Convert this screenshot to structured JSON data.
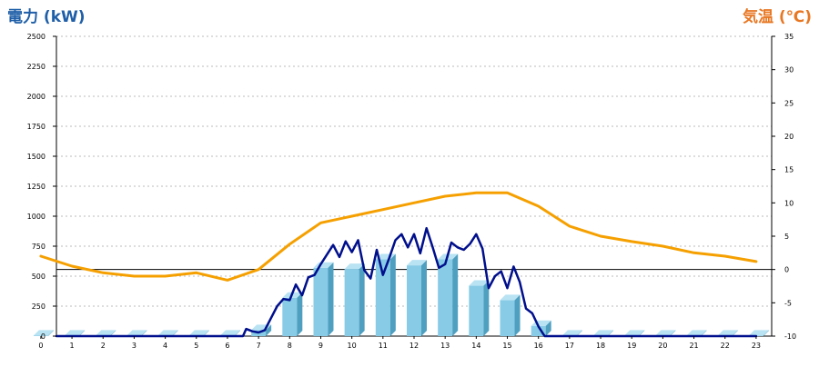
{
  "chart_data": {
    "type": "bar+line",
    "left_axis_label": "電力 (kW)",
    "right_axis_label": "気温 (℃)",
    "x_ticks": [
      "0",
      "1",
      "2",
      "3",
      "4",
      "5",
      "6",
      "7",
      "8",
      "9",
      "10",
      "11",
      "12",
      "13",
      "14",
      "15",
      "16",
      "17",
      "18",
      "19",
      "20",
      "21",
      "22",
      "23"
    ],
    "left_ticks": [
      "0",
      "250",
      "500",
      "750",
      "1000",
      "1250",
      "1500",
      "1750",
      "2000",
      "2250",
      "2500"
    ],
    "right_ticks": [
      "-10",
      "-5",
      "0",
      "5",
      "10",
      "15",
      "20",
      "25",
      "30",
      "35"
    ],
    "ylim_left": [
      0,
      2500
    ],
    "ylim_right": [
      -10,
      35
    ],
    "grid": "horizontal dashed",
    "colors": {
      "left_label": "#1f5fa8",
      "right_label": "#e87722",
      "bar_front": "#87cbe6",
      "bar_side": "#4f9fc0",
      "bar_top": "#b9e3f3",
      "power_line": "#000f8c",
      "temp_line": "#f5a000",
      "zero_line": "#000000",
      "grid": "#bbbbbb"
    },
    "bars": {
      "x": [
        0,
        1,
        2,
        3,
        4,
        5,
        6,
        7,
        8,
        9,
        10,
        11,
        12,
        13,
        14,
        15,
        16,
        17,
        18,
        19,
        20,
        21,
        22,
        23
      ],
      "values": [
        5,
        5,
        5,
        5,
        5,
        5,
        5,
        50,
        320,
        570,
        560,
        640,
        590,
        640,
        420,
        300,
        85,
        5,
        5,
        5,
        5,
        5,
        5,
        5
      ]
    },
    "power_line": {
      "x": [
        0,
        6.5,
        6.6,
        6.8,
        7.0,
        7.2,
        7.4,
        7.6,
        7.8,
        8.0,
        8.2,
        8.4,
        8.6,
        8.8,
        9.0,
        9.2,
        9.4,
        9.6,
        9.8,
        10.0,
        10.2,
        10.4,
        10.6,
        10.8,
        11.0,
        11.2,
        11.4,
        11.6,
        11.8,
        12.0,
        12.2,
        12.4,
        12.6,
        12.8,
        13.0,
        13.2,
        13.4,
        13.6,
        13.8,
        14.0,
        14.2,
        14.4,
        14.6,
        14.8,
        15.0,
        15.2,
        15.4,
        15.6,
        15.8,
        16.0,
        16.2,
        16.4,
        23
      ],
      "values": [
        0,
        0,
        60,
        40,
        30,
        50,
        150,
        250,
        310,
        300,
        430,
        340,
        490,
        510,
        600,
        680,
        760,
        660,
        790,
        700,
        800,
        550,
        480,
        720,
        510,
        650,
        800,
        850,
        740,
        850,
        690,
        900,
        740,
        570,
        600,
        780,
        740,
        720,
        770,
        850,
        730,
        400,
        500,
        540,
        400,
        580,
        450,
        230,
        190,
        80,
        0,
        0,
        0
      ]
    },
    "temperature_line": {
      "x": [
        0,
        1,
        2,
        3,
        4,
        5,
        6,
        7,
        8,
        9,
        10,
        11,
        12,
        13,
        14,
        15,
        16,
        17,
        18,
        19,
        20,
        21,
        22,
        23
      ],
      "values": [
        2,
        0.5,
        -0.5,
        -1,
        -1,
        -0.5,
        -1.6,
        0,
        3.8,
        7,
        8,
        9,
        10,
        11,
        11.5,
        11.5,
        9.5,
        6.5,
        5,
        4.2,
        3.5,
        2.5,
        2,
        1.2
      ]
    }
  }
}
